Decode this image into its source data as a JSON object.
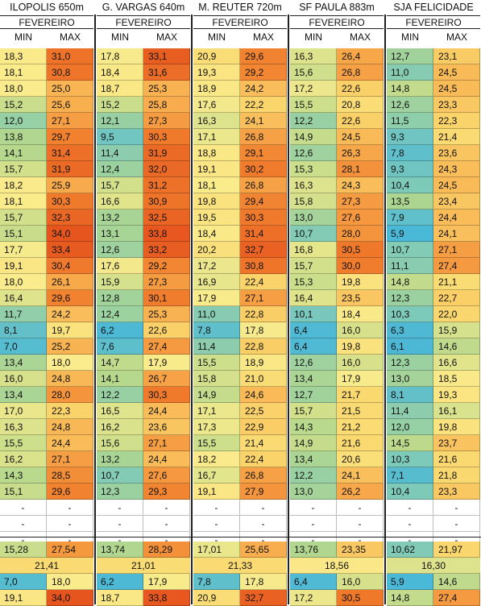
{
  "columns": [
    {
      "station": "ILOPOLIS 650m",
      "month": "FEVEREIRO",
      "min_label": "MIN",
      "max_label": "MAX",
      "rows": [
        [
          "18,3",
          "31,0"
        ],
        [
          "18,1",
          "30,8"
        ],
        [
          "18,0",
          "25,0"
        ],
        [
          "15,2",
          "25,6"
        ],
        [
          "12,0",
          "27,1"
        ],
        [
          "13,8",
          "29,7"
        ],
        [
          "14,1",
          "31,4"
        ],
        [
          "15,7",
          "31,9"
        ],
        [
          "18,2",
          "25,9"
        ],
        [
          "18,1",
          "30,3"
        ],
        [
          "15,7",
          "32,3"
        ],
        [
          "15,1",
          "34,0"
        ],
        [
          "17,7",
          "33,4"
        ],
        [
          "19,1",
          "30,4"
        ],
        [
          "18,0",
          "26,1"
        ],
        [
          "16,4",
          "29,6"
        ],
        [
          "11,7",
          "24,2"
        ],
        [
          "8,1",
          "19,7"
        ],
        [
          "7,0",
          "25,2"
        ],
        [
          "13,4",
          "18,0"
        ],
        [
          "16,0",
          "24,8"
        ],
        [
          "13,4",
          "28,0"
        ],
        [
          "17,0",
          "22,3"
        ],
        [
          "16,3",
          "24,8"
        ],
        [
          "15,5",
          "24,4"
        ],
        [
          "16,2",
          "27,1"
        ],
        [
          "14,3",
          "28,5"
        ],
        [
          "15,1",
          "29,6"
        ],
        [
          "-",
          "-"
        ],
        [
          "-",
          "-"
        ],
        [
          "-",
          "-"
        ]
      ],
      "avg": [
        "15,28",
        "27,54"
      ],
      "mean": "21,41",
      "lowest": [
        "7,0",
        "18,0"
      ],
      "highest": [
        "19,1",
        "34,0"
      ]
    },
    {
      "station": "G. VARGAS 640m",
      "month": "FEVEREIRO",
      "min_label": "MIN",
      "max_label": "MAX",
      "rows": [
        [
          "17,8",
          "33,1"
        ],
        [
          "18,4",
          "31,6"
        ],
        [
          "18,7",
          "25,3"
        ],
        [
          "15,2",
          "25,8"
        ],
        [
          "12,1",
          "27,3"
        ],
        [
          "9,5",
          "30,3"
        ],
        [
          "11,4",
          "31,9"
        ],
        [
          "12,4",
          "32,0"
        ],
        [
          "15,7",
          "31,2"
        ],
        [
          "16,6",
          "30,9"
        ],
        [
          "13,2",
          "32,5"
        ],
        [
          "13,1",
          "33,8"
        ],
        [
          "12,6",
          "33,2"
        ],
        [
          "17,6",
          "29,2"
        ],
        [
          "15,9",
          "27,3"
        ],
        [
          "12,8",
          "30,1"
        ],
        [
          "12,4",
          "25,3"
        ],
        [
          "6,2",
          "22,6"
        ],
        [
          "7,6",
          "27,4"
        ],
        [
          "14,7",
          "17,9"
        ],
        [
          "14,1",
          "26,7"
        ],
        [
          "12,2",
          "30,3"
        ],
        [
          "16,5",
          "24,4"
        ],
        [
          "16,2",
          "23,6"
        ],
        [
          "15,6",
          "27,1"
        ],
        [
          "13,2",
          "24,4"
        ],
        [
          "10,7",
          "27,6"
        ],
        [
          "12,3",
          "29,3"
        ],
        [
          "-",
          "-"
        ],
        [
          "-",
          "-"
        ],
        [
          "-",
          "-"
        ]
      ],
      "avg": [
        "13,74",
        "28,29"
      ],
      "mean": "21,01",
      "lowest": [
        "6,2",
        "17,9"
      ],
      "highest": [
        "18,7",
        "33,8"
      ]
    },
    {
      "station": "M. REUTER  720m",
      "month": "FEVEREIRO",
      "min_label": "MIN",
      "max_label": "MAX",
      "rows": [
        [
          "20,9",
          "29,6"
        ],
        [
          "19,3",
          "29,2"
        ],
        [
          "18,9",
          "24,2"
        ],
        [
          "17,6",
          "22,2"
        ],
        [
          "16,3",
          "24,1"
        ],
        [
          "17,1",
          "26,8"
        ],
        [
          "18,8",
          "29,1"
        ],
        [
          "19,1",
          "30,2"
        ],
        [
          "18,1",
          "26,8"
        ],
        [
          "19,8",
          "29,4"
        ],
        [
          "19,5",
          "30,3"
        ],
        [
          "18,4",
          "31,4"
        ],
        [
          "20,2",
          "32,7"
        ],
        [
          "17,2",
          "30,8"
        ],
        [
          "16,9",
          "22,4"
        ],
        [
          "17,9",
          "27,1"
        ],
        [
          "11,0",
          "22,8"
        ],
        [
          "7,8",
          "17,8"
        ],
        [
          "11,4",
          "22,8"
        ],
        [
          "15,5",
          "18,9"
        ],
        [
          "15,8",
          "21,0"
        ],
        [
          "14,9",
          "24,6"
        ],
        [
          "17,1",
          "22,5"
        ],
        [
          "17,3",
          "22,9"
        ],
        [
          "15,5",
          "21,4"
        ],
        [
          "18,2",
          "22,4"
        ],
        [
          "16,7",
          "26,8"
        ],
        [
          "19,1",
          "27,9"
        ],
        [
          "-",
          "-"
        ],
        [
          "-",
          "-"
        ],
        [
          "-",
          "-"
        ]
      ],
      "avg": [
        "17,01",
        "25,65"
      ],
      "mean": "21,33",
      "lowest": [
        "7,8",
        "17,8"
      ],
      "highest": [
        "20,9",
        "32,7"
      ]
    },
    {
      "station": "SF PAULA 883m",
      "month": "FEVEREIRO",
      "min_label": "MIN",
      "max_label": "MAX",
      "rows": [
        [
          "16,3",
          "26,4"
        ],
        [
          "15,6",
          "26,8"
        ],
        [
          "17,2",
          "22,6"
        ],
        [
          "15,5",
          "20,8"
        ],
        [
          "12,2",
          "22,6"
        ],
        [
          "14,9",
          "24,5"
        ],
        [
          "12,6",
          "26,3"
        ],
        [
          "15,3",
          "28,1"
        ],
        [
          "16,3",
          "24,3"
        ],
        [
          "15,8",
          "27,3"
        ],
        [
          "13,0",
          "27,6"
        ],
        [
          "10,7",
          "28,0"
        ],
        [
          "16,8",
          "30,5"
        ],
        [
          "15,7",
          "30,0"
        ],
        [
          "15,3",
          "19,8"
        ],
        [
          "16,4",
          "23,5"
        ],
        [
          "10,1",
          "18,4"
        ],
        [
          "6,4",
          "16,0"
        ],
        [
          "6,4",
          "19,8"
        ],
        [
          "12,6",
          "16,0"
        ],
        [
          "13,4",
          "17,9"
        ],
        [
          "12,7",
          "21,7"
        ],
        [
          "15,7",
          "21,5"
        ],
        [
          "14,3",
          "21,2"
        ],
        [
          "14,9",
          "21,6"
        ],
        [
          "13,4",
          "20,6"
        ],
        [
          "12,2",
          "24,1"
        ],
        [
          "13,0",
          "26,2"
        ],
        [
          "-",
          "-"
        ],
        [
          "-",
          "-"
        ],
        [
          "-",
          "-"
        ]
      ],
      "avg": [
        "13,76",
        "23,35"
      ],
      "mean": "18,56",
      "lowest": [
        "6,4",
        "16,0"
      ],
      "highest": [
        "17,2",
        "30,5"
      ]
    },
    {
      "station": "SJA FELICIDADE",
      "month": "FEVEREIRO",
      "min_label": "MIN",
      "max_label": "MAX",
      "rows": [
        [
          "12,7",
          "23,1"
        ],
        [
          "11,0",
          "24,5"
        ],
        [
          "14,8",
          "24,5"
        ],
        [
          "12,6",
          "23,3"
        ],
        [
          "11,5",
          "22,3"
        ],
        [
          "9,3",
          "21,4"
        ],
        [
          "7,8",
          "23,6"
        ],
        [
          "9,3",
          "24,3"
        ],
        [
          "10,4",
          "24,5"
        ],
        [
          "13,5",
          "23,4"
        ],
        [
          "7,9",
          "24,4"
        ],
        [
          "5,9",
          "24,1"
        ],
        [
          "10,7",
          "27,1"
        ],
        [
          "11,1",
          "27,4"
        ],
        [
          "14,8",
          "21,1"
        ],
        [
          "12,3",
          "22,7"
        ],
        [
          "10,3",
          "22,0"
        ],
        [
          "6,3",
          "15,9"
        ],
        [
          "6,1",
          "14,6"
        ],
        [
          "12,3",
          "16,6"
        ],
        [
          "13,0",
          "18,5"
        ],
        [
          "8,1",
          "19,3"
        ],
        [
          "11,4",
          "16,1"
        ],
        [
          "12,0",
          "19,8"
        ],
        [
          "14,5",
          "23,7"
        ],
        [
          "10,3",
          "21,6"
        ],
        [
          "7,1",
          "21,8"
        ],
        [
          "10,4",
          "23,3"
        ],
        [
          "-",
          "-"
        ],
        [
          "-",
          "-"
        ],
        [
          "-",
          "-"
        ]
      ],
      "avg": [
        "10,62",
        "21,97"
      ],
      "mean": "16,30",
      "lowest": [
        "5,9",
        "14,6"
      ],
      "highest": [
        "14,8",
        "27,4"
      ]
    }
  ]
}
